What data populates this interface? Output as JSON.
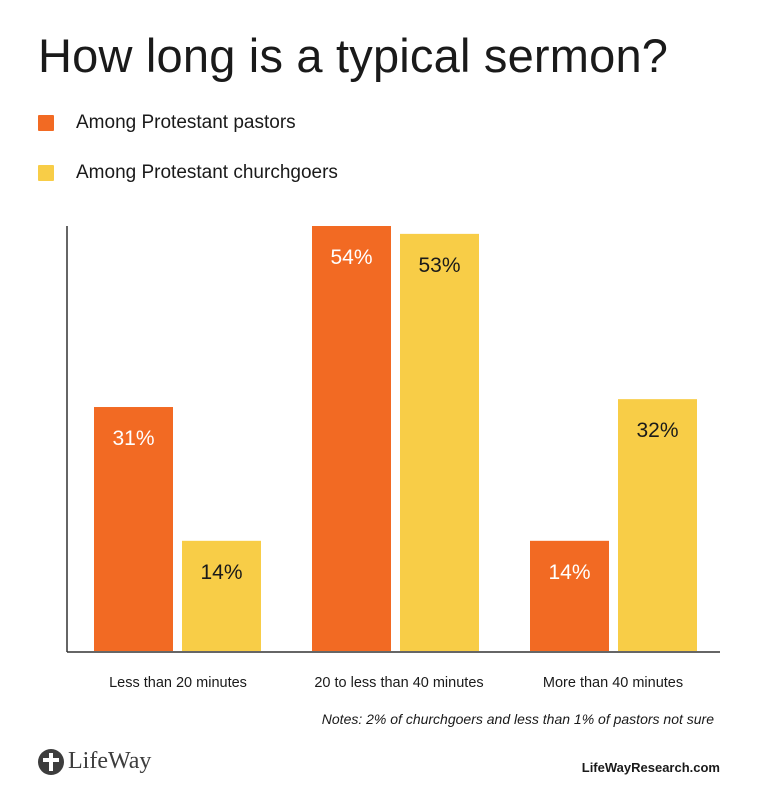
{
  "title": "How long is a typical sermon?",
  "legend": [
    {
      "label": "Among Protestant pastors",
      "color": "#f26a23"
    },
    {
      "label": "Among Protestant churchgoers",
      "color": "#f8cd47"
    }
  ],
  "chart_data": {
    "type": "bar",
    "title": "How long is a typical sermon?",
    "categories": [
      "Less than 20 minutes",
      "20 to less than 40 minutes",
      "More than 40 minutes"
    ],
    "series": [
      {
        "name": "Among Protestant pastors",
        "values": [
          31,
          54,
          14
        ],
        "color": "#f26a23",
        "label_color": "#ffffff"
      },
      {
        "name": "Among Protestant churchgoers",
        "values": [
          14,
          53,
          32
        ],
        "color": "#f8cd47",
        "label_color": "#1a1a1a"
      }
    ],
    "value_suffix": "%",
    "ylim": [
      0,
      54
    ],
    "grid": false,
    "legend_position": "top-left"
  },
  "note": "Notes: 2% of churchgoers and less than 1% of pastors not sure",
  "brand": {
    "logo_text": "LifeWay",
    "logo_icon": "cross-circle-icon",
    "site": "LifeWayResearch.com"
  }
}
